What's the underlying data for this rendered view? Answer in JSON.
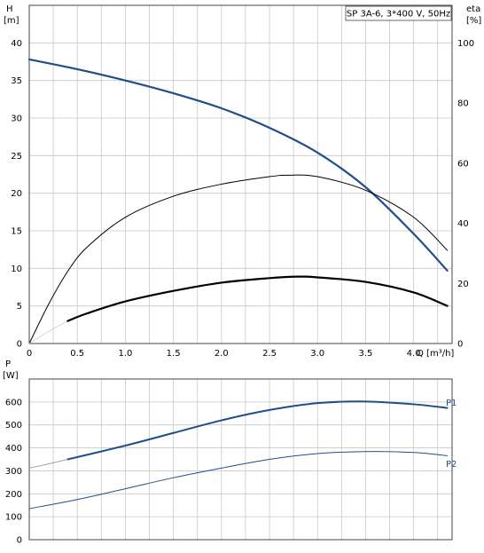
{
  "chart_data": [
    {
      "type": "line",
      "title": "SP 3A-6, 3*400 V, 50Hz",
      "xlabel": "Q [m³/h]",
      "ylabel": "H",
      "ylabel_unit": "[m]",
      "y2label": "eta",
      "y2label_unit": "[%]",
      "xlim": [
        0,
        4.4
      ],
      "ylim": [
        0,
        45
      ],
      "y2lim": [
        0,
        112.5
      ],
      "x_ticks": [
        "0",
        "0.5",
        "1.0",
        "1.5",
        "2.0",
        "2.5",
        "3.0",
        "3.5",
        "4.0"
      ],
      "y_ticks": [
        "0",
        "5",
        "10",
        "15",
        "20",
        "25",
        "30",
        "35",
        "40"
      ],
      "y2_ticks": [
        "0",
        "20",
        "40",
        "60",
        "80",
        "100"
      ],
      "grid": true,
      "series": [
        {
          "axis": "left",
          "color": "#1f4e8c",
          "width": 2.2,
          "x": [
            0,
            0.5,
            1.0,
            1.5,
            2.0,
            2.5,
            3.0,
            3.5,
            4.0,
            4.35
          ],
          "y": [
            37.8,
            36.5,
            35.0,
            33.3,
            31.3,
            28.7,
            25.4,
            20.8,
            14.6,
            9.7
          ]
        },
        {
          "axis": "right",
          "color": "#000000",
          "width": 1,
          "x": [
            0,
            0.2,
            0.4,
            0.6,
            1.0,
            1.5,
            2.0,
            2.5,
            2.7,
            3.0,
            3.5,
            4.0,
            4.35
          ],
          "y": [
            0,
            13,
            24,
            32,
            42,
            49,
            53,
            55.5,
            56,
            55.5,
            51,
            42,
            31
          ]
        },
        {
          "axis": "left",
          "color": "#cccccc",
          "width": 0.8,
          "x": [
            0,
            0.2,
            0.4
          ],
          "y": [
            0,
            1.6,
            3.0
          ]
        },
        {
          "axis": "left",
          "color": "#000000",
          "width": 2.2,
          "x": [
            0.4,
            0.6,
            1.0,
            1.5,
            2.0,
            2.5,
            2.8,
            3.0,
            3.5,
            4.0,
            4.35
          ],
          "y": [
            3.0,
            4.0,
            5.6,
            7.0,
            8.1,
            8.7,
            8.9,
            8.8,
            8.2,
            6.8,
            5.0
          ]
        }
      ]
    },
    {
      "type": "line",
      "xlabel": "",
      "ylabel": "P",
      "ylabel_unit": "[W]",
      "xlim": [
        0,
        4.4
      ],
      "ylim": [
        0,
        700
      ],
      "y_ticks": [
        "0",
        "100",
        "200",
        "300",
        "400",
        "500",
        "600"
      ],
      "grid": true,
      "series": [
        {
          "name": "P1",
          "axis": "left",
          "color": "#1f4e8c",
          "width": 2,
          "x": [
            0.4,
            1.0,
            1.5,
            2.0,
            2.5,
            3.0,
            3.5,
            4.0,
            4.35
          ],
          "y": [
            350,
            410,
            465,
            520,
            565,
            595,
            602,
            590,
            574
          ]
        },
        {
          "name": "",
          "axis": "left",
          "color": "#888888",
          "width": 0.8,
          "x": [
            0,
            0.2,
            0.4
          ],
          "y": [
            312,
            330,
            350
          ]
        },
        {
          "name": "P2",
          "axis": "left",
          "color": "#1f4e8c",
          "width": 1,
          "x": [
            0,
            0.5,
            1.0,
            1.5,
            2.0,
            2.5,
            3.0,
            3.5,
            4.0,
            4.35
          ],
          "y": [
            135,
            175,
            222,
            270,
            312,
            350,
            375,
            384,
            380,
            366
          ]
        }
      ]
    }
  ]
}
